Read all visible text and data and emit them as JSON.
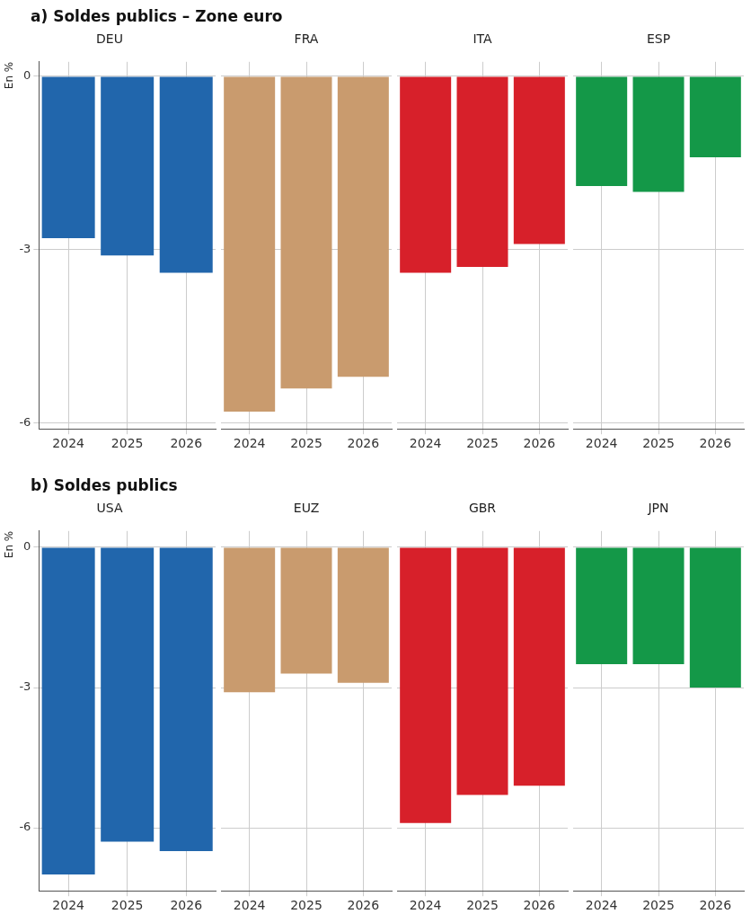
{
  "chart_data": [
    {
      "type": "bar",
      "title": "a) Soldes publics – Zone euro",
      "subtitle": "DEU",
      "ylabel": "En %",
      "categories": [
        "2024",
        "2025",
        "2026"
      ],
      "values": [
        -2.8,
        -3.1,
        -3.4
      ],
      "color": "#2166ac",
      "ylim": [
        -6.1,
        0.25
      ],
      "yticks": [
        -6,
        -3,
        0
      ],
      "grid": true
    },
    {
      "type": "bar",
      "subtitle": "FRA",
      "categories": [
        "2024",
        "2025",
        "2026"
      ],
      "values": [
        -5.8,
        -5.4,
        -5.2
      ],
      "color": "#c99b6e",
      "ylim": [
        -6.1,
        0.25
      ],
      "yticks": [
        -6,
        -3,
        0
      ],
      "grid": true,
      "tick_labels": "x"
    },
    {
      "type": "bar",
      "subtitle": "ITA",
      "categories": [
        "2024",
        "2025",
        "2026"
      ],
      "values": [
        -3.4,
        -3.3,
        -2.9
      ],
      "color": "#d7202a",
      "ylim": [
        -6.1,
        0.25
      ],
      "yticks": [
        -6,
        -3,
        0
      ],
      "grid": true,
      "tick_labels": "x"
    },
    {
      "type": "bar",
      "subtitle": "ESP",
      "categories": [
        "2024",
        "2025",
        "2026"
      ],
      "values": [
        -1.9,
        -2.0,
        -1.4
      ],
      "color": "#149848",
      "ylim": [
        -6.1,
        0.25
      ],
      "yticks": [
        -6,
        -3,
        0
      ],
      "grid": true,
      "tick_labels": "x"
    },
    {
      "type": "bar",
      "title": "b) Soldes publics",
      "subtitle": "USA",
      "ylabel": "En %",
      "categories": [
        "2024",
        "2025",
        "2026"
      ],
      "values": [
        -7.0,
        -6.3,
        -6.5
      ],
      "color": "#2166ac",
      "ylim": [
        -7.35,
        0.35
      ],
      "yticks": [
        -6,
        -3,
        0
      ],
      "grid": true
    },
    {
      "type": "bar",
      "subtitle": "EUZ",
      "categories": [
        "2024",
        "2025",
        "2026"
      ],
      "values": [
        -3.1,
        -2.7,
        -2.9
      ],
      "color": "#c99b6e",
      "ylim": [
        -7.35,
        0.35
      ],
      "yticks": [
        -6,
        -3,
        0
      ],
      "grid": true,
      "tick_labels": "x"
    },
    {
      "type": "bar",
      "subtitle": "GBR",
      "categories": [
        "2024",
        "2025",
        "2026"
      ],
      "values": [
        -5.9,
        -5.3,
        -5.1
      ],
      "color": "#d7202a",
      "ylim": [
        -7.35,
        0.35
      ],
      "yticks": [
        -6,
        -3,
        0
      ],
      "grid": true,
      "tick_labels": "x"
    },
    {
      "type": "bar",
      "subtitle": "JPN",
      "categories": [
        "2024",
        "2025",
        "2026"
      ],
      "values": [
        -2.5,
        -2.5,
        -3.0
      ],
      "color": "#149848",
      "ylim": [
        -7.35,
        0.35
      ],
      "yticks": [
        -6,
        -3,
        0
      ],
      "grid": true,
      "tick_labels": "x"
    }
  ]
}
